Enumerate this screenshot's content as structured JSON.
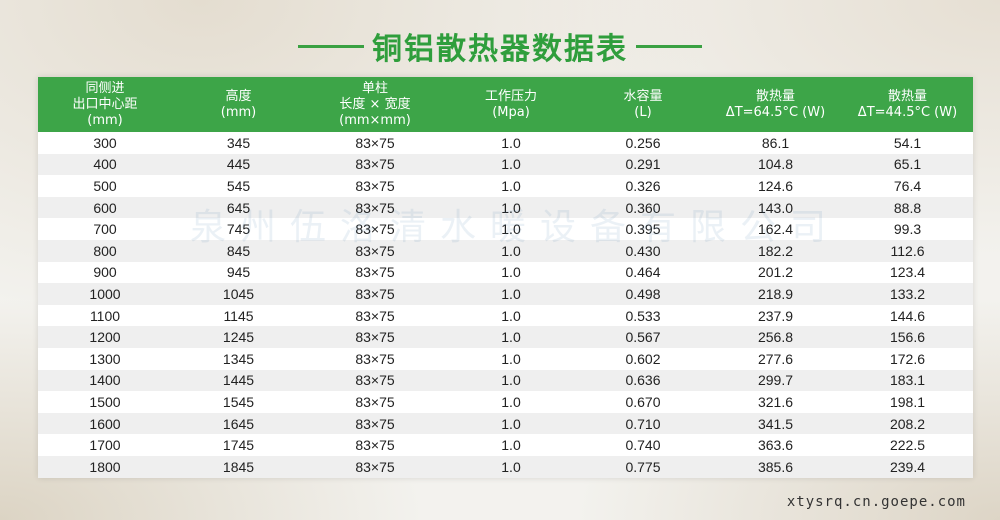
{
  "title": "铜铝散热器数据表",
  "headers": [
    [
      "同侧进",
      "出口中心距",
      "(mm)"
    ],
    [
      "高度",
      "(mm)"
    ],
    [
      "单柱",
      "长度 × 宽度",
      "(mm×mm)"
    ],
    [
      "工作压力",
      "(Mpa)"
    ],
    [
      "水容量",
      "(L)"
    ],
    [
      "散热量",
      "ΔT=64.5°C (W)"
    ],
    [
      "散热量",
      "ΔT=44.5°C (W)"
    ]
  ],
  "rows": [
    [
      "300",
      "345",
      "83×75",
      "1.0",
      "0.256",
      "86.1",
      "54.1"
    ],
    [
      "400",
      "445",
      "83×75",
      "1.0",
      "0.291",
      "104.8",
      "65.1"
    ],
    [
      "500",
      "545",
      "83×75",
      "1.0",
      "0.326",
      "124.6",
      "76.4"
    ],
    [
      "600",
      "645",
      "83×75",
      "1.0",
      "0.360",
      "143.0",
      "88.8"
    ],
    [
      "700",
      "745",
      "83×75",
      "1.0",
      "0.395",
      "162.4",
      "99.3"
    ],
    [
      "800",
      "845",
      "83×75",
      "1.0",
      "0.430",
      "182.2",
      "112.6"
    ],
    [
      "900",
      "945",
      "83×75",
      "1.0",
      "0.464",
      "201.2",
      "123.4"
    ],
    [
      "1000",
      "1045",
      "83×75",
      "1.0",
      "0.498",
      "218.9",
      "133.2"
    ],
    [
      "1100",
      "1145",
      "83×75",
      "1.0",
      "0.533",
      "237.9",
      "144.6"
    ],
    [
      "1200",
      "1245",
      "83×75",
      "1.0",
      "0.567",
      "256.8",
      "156.6"
    ],
    [
      "1300",
      "1345",
      "83×75",
      "1.0",
      "0.602",
      "277.6",
      "172.6"
    ],
    [
      "1400",
      "1445",
      "83×75",
      "1.0",
      "0.636",
      "299.7",
      "183.1"
    ],
    [
      "1500",
      "1545",
      "83×75",
      "1.0",
      "0.670",
      "321.6",
      "198.1"
    ],
    [
      "1600",
      "1645",
      "83×75",
      "1.0",
      "0.710",
      "341.5",
      "208.2"
    ],
    [
      "1700",
      "1745",
      "83×75",
      "1.0",
      "0.740",
      "363.6",
      "222.5"
    ],
    [
      "1800",
      "1845",
      "83×75",
      "1.0",
      "0.775",
      "385.6",
      "239.4"
    ]
  ],
  "watermark": "泉州伍洛清水暖设备有限公司",
  "footer": "xtysrq.cn.goepe.com",
  "colors": {
    "accent": "#3da548",
    "title": "#2f9e3c",
    "row_alt": "#efefef"
  }
}
